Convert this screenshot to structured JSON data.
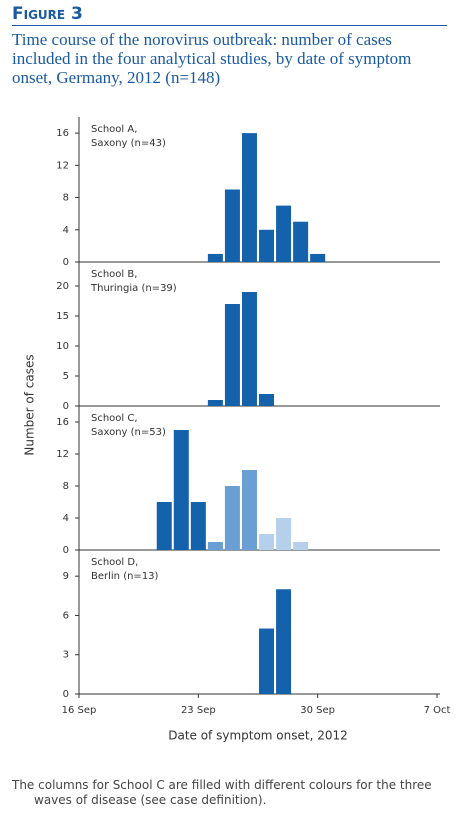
{
  "figure_label": "Figure 3",
  "title": "Time course of the norovirus outbreak: number of cases included in the four analytical studies, by date of symptom onset, Germany, 2012 (n=148)",
  "ylabel": "Number of cases",
  "xlabel": "Date of symptom onset, 2012",
  "note": "The columns for School C are filled with different colours for the three waves of disease (see case definition).",
  "chart_data": [
    {
      "type": "bar",
      "annotation": [
        "School A,",
        "Saxony (n=43)"
      ],
      "xlim": [
        "16 Sep",
        "7 Oct"
      ],
      "ylim": [
        0,
        18
      ],
      "yticks": [
        0,
        4,
        8,
        12,
        16
      ],
      "series": [
        {
          "color": "#1462ac",
          "x": [
            "24 Sep",
            "25 Sep",
            "26 Sep",
            "27 Sep",
            "28 Sep",
            "29 Sep",
            "30 Sep"
          ],
          "values": [
            1,
            9,
            16,
            4,
            7,
            5,
            1
          ]
        }
      ]
    },
    {
      "type": "bar",
      "annotation": [
        "School B,",
        "Thuringia (n=39)"
      ],
      "xlim": [
        "16 Sep",
        "7 Oct"
      ],
      "ylim": [
        0,
        24
      ],
      "yticks": [
        0,
        5,
        10,
        15,
        20
      ],
      "series": [
        {
          "color": "#1462ac",
          "x": [
            "24 Sep",
            "25 Sep",
            "26 Sep",
            "27 Sep"
          ],
          "values": [
            1,
            17,
            19,
            2
          ]
        }
      ]
    },
    {
      "type": "bar",
      "annotation": [
        "School C,",
        "Saxony (n=53)"
      ],
      "xlim": [
        "16 Sep",
        "7 Oct"
      ],
      "ylim": [
        0,
        18
      ],
      "yticks": [
        0,
        4,
        8,
        12,
        16
      ],
      "series": [
        {
          "color": "#1462ac",
          "x": [
            "21 Sep",
            "22 Sep",
            "23 Sep"
          ],
          "values": [
            6,
            15,
            6
          ]
        },
        {
          "color": "#6a9fd4",
          "x": [
            "24 Sep",
            "25 Sep",
            "26 Sep"
          ],
          "values": [
            1,
            8,
            10
          ]
        },
        {
          "color": "#b6cfeb",
          "x": [
            "27 Sep",
            "28 Sep",
            "29 Sep"
          ],
          "values": [
            2,
            4,
            1
          ]
        }
      ]
    },
    {
      "type": "bar",
      "annotation": [
        "School D,",
        "Berlin (n=13)"
      ],
      "xlim": [
        "16 Sep",
        "7 Oct"
      ],
      "ylim": [
        0,
        11
      ],
      "yticks": [
        0,
        3,
        6,
        9
      ],
      "xticks": [
        "16 Sep",
        "23 Sep",
        "30 Sep",
        "7 Oct"
      ],
      "series": [
        {
          "color": "#1462ac",
          "x": [
            "27 Sep",
            "28 Sep"
          ],
          "values": [
            5,
            8
          ]
        }
      ]
    }
  ]
}
